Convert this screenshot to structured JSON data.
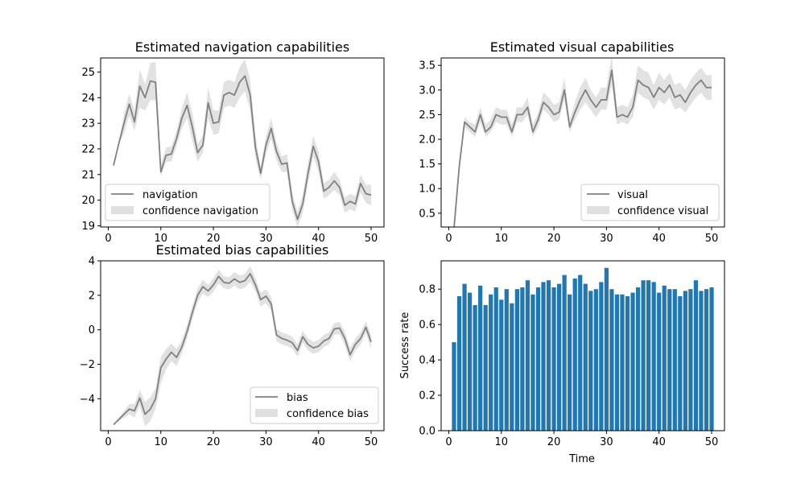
{
  "colors": {
    "line": "#808080",
    "band": "#d3d3d3",
    "bar": "#1f77b4",
    "axis": "#000000",
    "legend_border": "#cccccc"
  },
  "chart_data": [
    {
      "id": "navigation",
      "type": "line",
      "title": "Estimated navigation capabilities",
      "xlabel": "",
      "ylabel": "",
      "xlim": [
        -1.45,
        52.45
      ],
      "ylim": [
        18.95,
        25.55
      ],
      "xticks": [
        0,
        10,
        20,
        30,
        40,
        50
      ],
      "xtick_labels": [
        "0",
        "10",
        "20",
        "30",
        "40",
        "50"
      ],
      "yticks": [
        19,
        20,
        21,
        22,
        23,
        24,
        25
      ],
      "ytick_labels": [
        "19",
        "20",
        "21",
        "22",
        "23",
        "24",
        "25"
      ],
      "legend_position": "lower-left",
      "series": [
        {
          "name": "navigation",
          "band_name": "confidence navigation",
          "x": [
            1,
            2,
            3,
            4,
            5,
            6,
            7,
            8,
            9,
            10,
            11,
            12,
            13,
            14,
            15,
            16,
            17,
            18,
            19,
            20,
            21,
            22,
            23,
            24,
            25,
            26,
            27,
            28,
            29,
            30,
            31,
            32,
            33,
            34,
            35,
            36,
            37,
            38,
            39,
            40,
            41,
            42,
            43,
            44,
            45,
            46,
            47,
            48,
            49,
            50
          ],
          "y": [
            21.35,
            22.2,
            23.0,
            23.75,
            23.05,
            24.45,
            24.0,
            24.65,
            24.6,
            21.1,
            21.75,
            21.8,
            22.4,
            23.2,
            23.7,
            22.85,
            21.85,
            22.15,
            23.8,
            23.0,
            23.05,
            24.1,
            24.2,
            24.1,
            24.6,
            24.85,
            24.1,
            22.05,
            21.05,
            22.15,
            22.8,
            21.9,
            21.4,
            21.45,
            19.95,
            19.25,
            19.85,
            21.05,
            22.1,
            21.5,
            20.35,
            20.5,
            20.75,
            20.5,
            19.8,
            19.95,
            19.85,
            20.65,
            20.25,
            20.2
          ],
          "lower": [
            21.35,
            22.2,
            22.6,
            23.3,
            22.7,
            23.6,
            23.5,
            23.9,
            23.9,
            20.9,
            21.5,
            21.5,
            22.1,
            22.8,
            23.2,
            22.3,
            21.5,
            21.85,
            23.2,
            22.55,
            22.6,
            23.6,
            23.7,
            23.6,
            24.0,
            24.25,
            23.5,
            21.6,
            20.8,
            21.8,
            22.4,
            21.55,
            21.1,
            21.1,
            19.6,
            18.95,
            19.5,
            20.65,
            21.7,
            21.1,
            20.05,
            20.2,
            20.4,
            20.2,
            19.5,
            19.65,
            19.55,
            20.3,
            19.9,
            19.8
          ],
          "upper": [
            21.35,
            22.2,
            23.4,
            24.15,
            23.5,
            25.1,
            24.5,
            25.35,
            25.4,
            21.4,
            22.05,
            22.1,
            22.7,
            23.6,
            24.2,
            23.4,
            22.2,
            22.5,
            24.4,
            23.5,
            23.5,
            24.6,
            24.7,
            24.6,
            25.2,
            25.5,
            24.7,
            22.5,
            21.3,
            22.5,
            23.2,
            22.25,
            21.7,
            21.8,
            20.3,
            19.55,
            20.2,
            21.45,
            22.5,
            21.9,
            20.65,
            20.8,
            21.1,
            20.8,
            20.1,
            20.25,
            20.15,
            21.0,
            20.6,
            20.6
          ]
        }
      ]
    },
    {
      "id": "visual",
      "type": "line",
      "title": "Estimated visual capabilities",
      "xlabel": "",
      "ylabel": "",
      "xlim": [
        -1.45,
        52.45
      ],
      "ylim": [
        0.22,
        3.65
      ],
      "xticks": [
        0,
        10,
        20,
        30,
        40,
        50
      ],
      "xtick_labels": [
        "0",
        "10",
        "20",
        "30",
        "40",
        "50"
      ],
      "yticks": [
        0.5,
        1.0,
        1.5,
        2.0,
        2.5,
        3.0,
        3.5
      ],
      "ytick_labels": [
        "0.5",
        "1.0",
        "1.5",
        "2.0",
        "2.5",
        "3.0",
        "3.5"
      ],
      "legend_position": "lower-right",
      "series": [
        {
          "name": "visual",
          "band_name": "confidence visual",
          "x": [
            1,
            2,
            3,
            4,
            5,
            6,
            7,
            8,
            9,
            10,
            11,
            12,
            13,
            14,
            15,
            16,
            17,
            18,
            19,
            20,
            21,
            22,
            23,
            24,
            25,
            26,
            27,
            28,
            29,
            30,
            31,
            32,
            33,
            34,
            35,
            36,
            37,
            38,
            39,
            40,
            41,
            42,
            43,
            44,
            45,
            46,
            47,
            48,
            49,
            50
          ],
          "y": [
            0.2,
            1.45,
            2.35,
            2.25,
            2.15,
            2.5,
            2.15,
            2.25,
            2.5,
            2.45,
            2.45,
            2.15,
            2.5,
            2.5,
            2.65,
            2.15,
            2.4,
            2.75,
            2.65,
            2.5,
            2.55,
            3.0,
            2.25,
            2.55,
            2.8,
            3.0,
            2.8,
            2.65,
            2.8,
            2.8,
            3.4,
            2.45,
            2.5,
            2.45,
            2.65,
            3.2,
            3.1,
            3.05,
            2.85,
            3.05,
            2.95,
            3.1,
            2.85,
            2.9,
            2.75,
            2.95,
            3.1,
            3.2,
            3.05,
            3.05
          ],
          "lower": [
            0.2,
            1.45,
            2.25,
            2.15,
            2.05,
            2.35,
            2.05,
            2.15,
            2.35,
            2.3,
            2.3,
            2.05,
            2.35,
            2.35,
            2.5,
            2.05,
            2.25,
            2.6,
            2.5,
            2.35,
            2.4,
            2.8,
            2.15,
            2.4,
            2.6,
            2.75,
            2.6,
            2.45,
            2.6,
            2.6,
            3.1,
            2.3,
            2.35,
            2.3,
            2.45,
            2.95,
            2.85,
            2.8,
            2.6,
            2.8,
            2.7,
            2.85,
            2.6,
            2.65,
            2.55,
            2.7,
            2.85,
            2.95,
            2.8,
            2.8
          ],
          "upper": [
            0.2,
            1.45,
            2.45,
            2.35,
            2.3,
            2.65,
            2.3,
            2.4,
            2.65,
            2.6,
            2.6,
            2.3,
            2.65,
            2.65,
            2.85,
            2.3,
            2.55,
            2.95,
            2.85,
            2.7,
            2.75,
            3.25,
            2.4,
            2.75,
            3.05,
            3.25,
            3.0,
            2.85,
            3.05,
            3.05,
            3.7,
            2.65,
            2.7,
            2.65,
            2.9,
            3.5,
            3.4,
            3.35,
            3.1,
            3.35,
            3.2,
            3.35,
            3.1,
            3.15,
            3.0,
            3.2,
            3.35,
            3.45,
            3.3,
            3.3
          ]
        }
      ]
    },
    {
      "id": "bias",
      "type": "line",
      "title": "Estimated bias capabilities",
      "xlabel": "",
      "ylabel": "",
      "xlim": [
        -1.45,
        52.45
      ],
      "ylim": [
        -5.85,
        4.0
      ],
      "xticks": [
        0,
        10,
        20,
        30,
        40,
        50
      ],
      "xtick_labels": [
        "0",
        "10",
        "20",
        "30",
        "40",
        "50"
      ],
      "yticks": [
        -4,
        -2,
        0,
        2,
        4
      ],
      "ytick_labels": [
        "−4",
        "−2",
        "0",
        "2",
        "4"
      ],
      "legend_position": "lower-right",
      "series": [
        {
          "name": "bias",
          "band_name": "confidence bias",
          "x": [
            1,
            2,
            3,
            4,
            5,
            6,
            7,
            8,
            9,
            10,
            11,
            12,
            13,
            14,
            15,
            16,
            17,
            18,
            19,
            20,
            21,
            22,
            23,
            24,
            25,
            26,
            27,
            28,
            29,
            30,
            31,
            32,
            33,
            34,
            35,
            36,
            37,
            38,
            39,
            40,
            41,
            42,
            43,
            44,
            45,
            46,
            47,
            48,
            49,
            50
          ],
          "y": [
            -5.5,
            -5.2,
            -4.9,
            -4.6,
            -4.7,
            -3.95,
            -4.9,
            -4.6,
            -4.0,
            -2.2,
            -1.7,
            -1.3,
            -1.6,
            -1.0,
            -0.1,
            1.0,
            2.0,
            2.5,
            2.25,
            2.6,
            3.1,
            2.75,
            2.7,
            2.95,
            2.75,
            2.85,
            3.25,
            2.6,
            1.75,
            1.95,
            1.5,
            -0.3,
            -0.5,
            -0.6,
            -0.75,
            -1.2,
            -0.4,
            -0.85,
            -1.05,
            -0.95,
            -0.65,
            -0.5,
            0.05,
            0.1,
            -0.5,
            -1.45,
            -0.85,
            -0.5,
            0.15,
            -0.7
          ],
          "lower": [
            -5.5,
            -5.3,
            -5.1,
            -4.9,
            -5.1,
            -4.4,
            -5.6,
            -5.3,
            -4.6,
            -3.1,
            -2.3,
            -1.8,
            -2.1,
            -1.4,
            -0.5,
            0.6,
            1.6,
            2.1,
            1.9,
            2.2,
            2.7,
            2.4,
            2.35,
            2.55,
            2.35,
            2.45,
            2.8,
            2.2,
            1.35,
            1.55,
            1.1,
            -0.65,
            -0.85,
            -0.95,
            -1.1,
            -1.55,
            -0.75,
            -1.2,
            -1.4,
            -1.3,
            -1.0,
            -0.85,
            -0.3,
            -0.25,
            -0.9,
            -1.85,
            -1.2,
            -0.85,
            -0.2,
            -1.1
          ],
          "upper": [
            -5.5,
            -5.1,
            -4.7,
            -4.3,
            -4.3,
            -3.5,
            -4.2,
            -3.9,
            -3.4,
            -1.6,
            -1.1,
            -0.8,
            -1.1,
            -0.6,
            0.3,
            1.4,
            2.4,
            2.9,
            2.6,
            3.0,
            3.5,
            3.1,
            3.05,
            3.35,
            3.15,
            3.25,
            3.7,
            3.0,
            2.15,
            2.35,
            1.9,
            0.05,
            -0.15,
            -0.25,
            -0.4,
            -0.85,
            -0.05,
            -0.5,
            -0.7,
            -0.6,
            -0.3,
            -0.15,
            0.4,
            0.45,
            -0.1,
            -1.05,
            -0.5,
            -0.15,
            0.5,
            -0.3
          ]
        }
      ]
    },
    {
      "id": "success",
      "type": "bar",
      "title": "",
      "xlabel": "Time",
      "ylabel": "Success rate",
      "xlim": [
        -1.45,
        52.45
      ],
      "ylim": [
        0.0,
        0.96
      ],
      "xticks": [
        0,
        10,
        20,
        30,
        40,
        50
      ],
      "xtick_labels": [
        "0",
        "10",
        "20",
        "30",
        "40",
        "50"
      ],
      "yticks": [
        0.0,
        0.2,
        0.4,
        0.6,
        0.8
      ],
      "ytick_labels": [
        "0.0",
        "0.2",
        "0.4",
        "0.6",
        "0.8"
      ],
      "categories": [
        1,
        2,
        3,
        4,
        5,
        6,
        7,
        8,
        9,
        10,
        11,
        12,
        13,
        14,
        15,
        16,
        17,
        18,
        19,
        20,
        21,
        22,
        23,
        24,
        25,
        26,
        27,
        28,
        29,
        30,
        31,
        32,
        33,
        34,
        35,
        36,
        37,
        38,
        39,
        40,
        41,
        42,
        43,
        44,
        45,
        46,
        47,
        48,
        49,
        50
      ],
      "values": [
        0.5,
        0.76,
        0.83,
        0.78,
        0.71,
        0.82,
        0.71,
        0.77,
        0.81,
        0.74,
        0.8,
        0.72,
        0.8,
        0.81,
        0.85,
        0.77,
        0.81,
        0.84,
        0.85,
        0.81,
        0.83,
        0.88,
        0.77,
        0.86,
        0.88,
        0.83,
        0.79,
        0.8,
        0.84,
        0.92,
        0.8,
        0.77,
        0.77,
        0.76,
        0.78,
        0.81,
        0.85,
        0.85,
        0.84,
        0.78,
        0.82,
        0.8,
        0.8,
        0.76,
        0.79,
        0.8,
        0.85,
        0.79,
        0.8,
        0.81
      ]
    }
  ]
}
